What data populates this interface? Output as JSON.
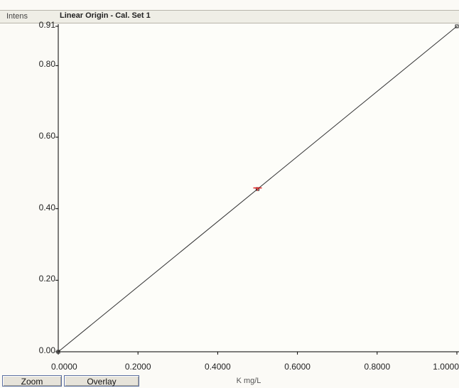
{
  "header": {
    "ylabel": "Intens",
    "title": "Linear Origin - Cal. Set 1"
  },
  "buttons": {
    "zoom": "Zoom",
    "overlay": "Overlay"
  },
  "chart_data": {
    "type": "line",
    "title": "Linear Origin - Cal. Set 1",
    "xlabel": "K mg/L",
    "ylabel": "Intens",
    "xlim": [
      0,
      1.0
    ],
    "ylim": [
      0,
      0.91
    ],
    "x_ticks": [
      "0.0000",
      "0.2000",
      "0.4000",
      "0.6000",
      "0.8000",
      "1.0000"
    ],
    "y_ticks": [
      "0.00",
      "0.20",
      "0.40",
      "0.60",
      "0.80",
      "0.91"
    ],
    "series": [
      {
        "values": [
          [
            0,
            0
          ],
          [
            1.0,
            0.91
          ]
        ],
        "color": "#303030"
      }
    ],
    "points": [
      {
        "x": 0.0,
        "y": 0.0,
        "color": "#202020"
      },
      {
        "x": 0.5,
        "y": 0.455,
        "color": "#202020"
      },
      {
        "x": 1.0,
        "y": 0.91,
        "color": "#202020"
      }
    ],
    "markers": [
      {
        "x": 0.5,
        "y": 0.458,
        "color": "#e02020"
      }
    ],
    "grid": false
  }
}
